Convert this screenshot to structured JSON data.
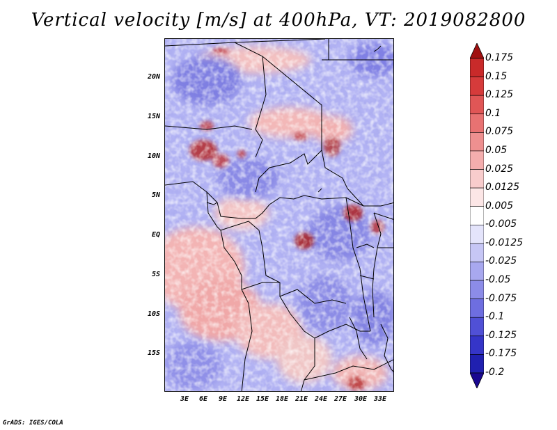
{
  "title": "Vertical velocity [m/s] at 400hPa, VT: 2019082800",
  "footer": "GrADS: IGES/COLA",
  "lat_labels": [
    "20N",
    "15N",
    "10N",
    "5N",
    "EQ",
    "5S",
    "10S",
    "15S"
  ],
  "lon_labels": [
    "3E",
    "6E",
    "9E",
    "12E",
    "15E",
    "18E",
    "21E",
    "24E",
    "27E",
    "30E",
    "33E"
  ],
  "colorbar": {
    "labels": [
      "0.175",
      "0.15",
      "0.125",
      "0.1",
      "0.075",
      "0.05",
      "0.025",
      "0.0125",
      "0.005",
      "-0.005",
      "-0.0125",
      "-0.025",
      "-0.05",
      "-0.075",
      "-0.1",
      "-0.125",
      "-0.175",
      "-0.2"
    ],
    "colors": [
      "#b01a22",
      "#c92a2a",
      "#d63b3b",
      "#e05656",
      "#e87272",
      "#ee9090",
      "#f4aeae",
      "#f8cccc",
      "#fce6e6",
      "#ffffff",
      "#e4e4fb",
      "#c6c6f5",
      "#a8a8ef",
      "#8c8ce8",
      "#6e6ee0",
      "#5050d6",
      "#3535c8",
      "#2020b0",
      "#140a98"
    ],
    "top_arrow_color": "#a01010",
    "bottom_arrow_color": "#1a0890"
  }
}
